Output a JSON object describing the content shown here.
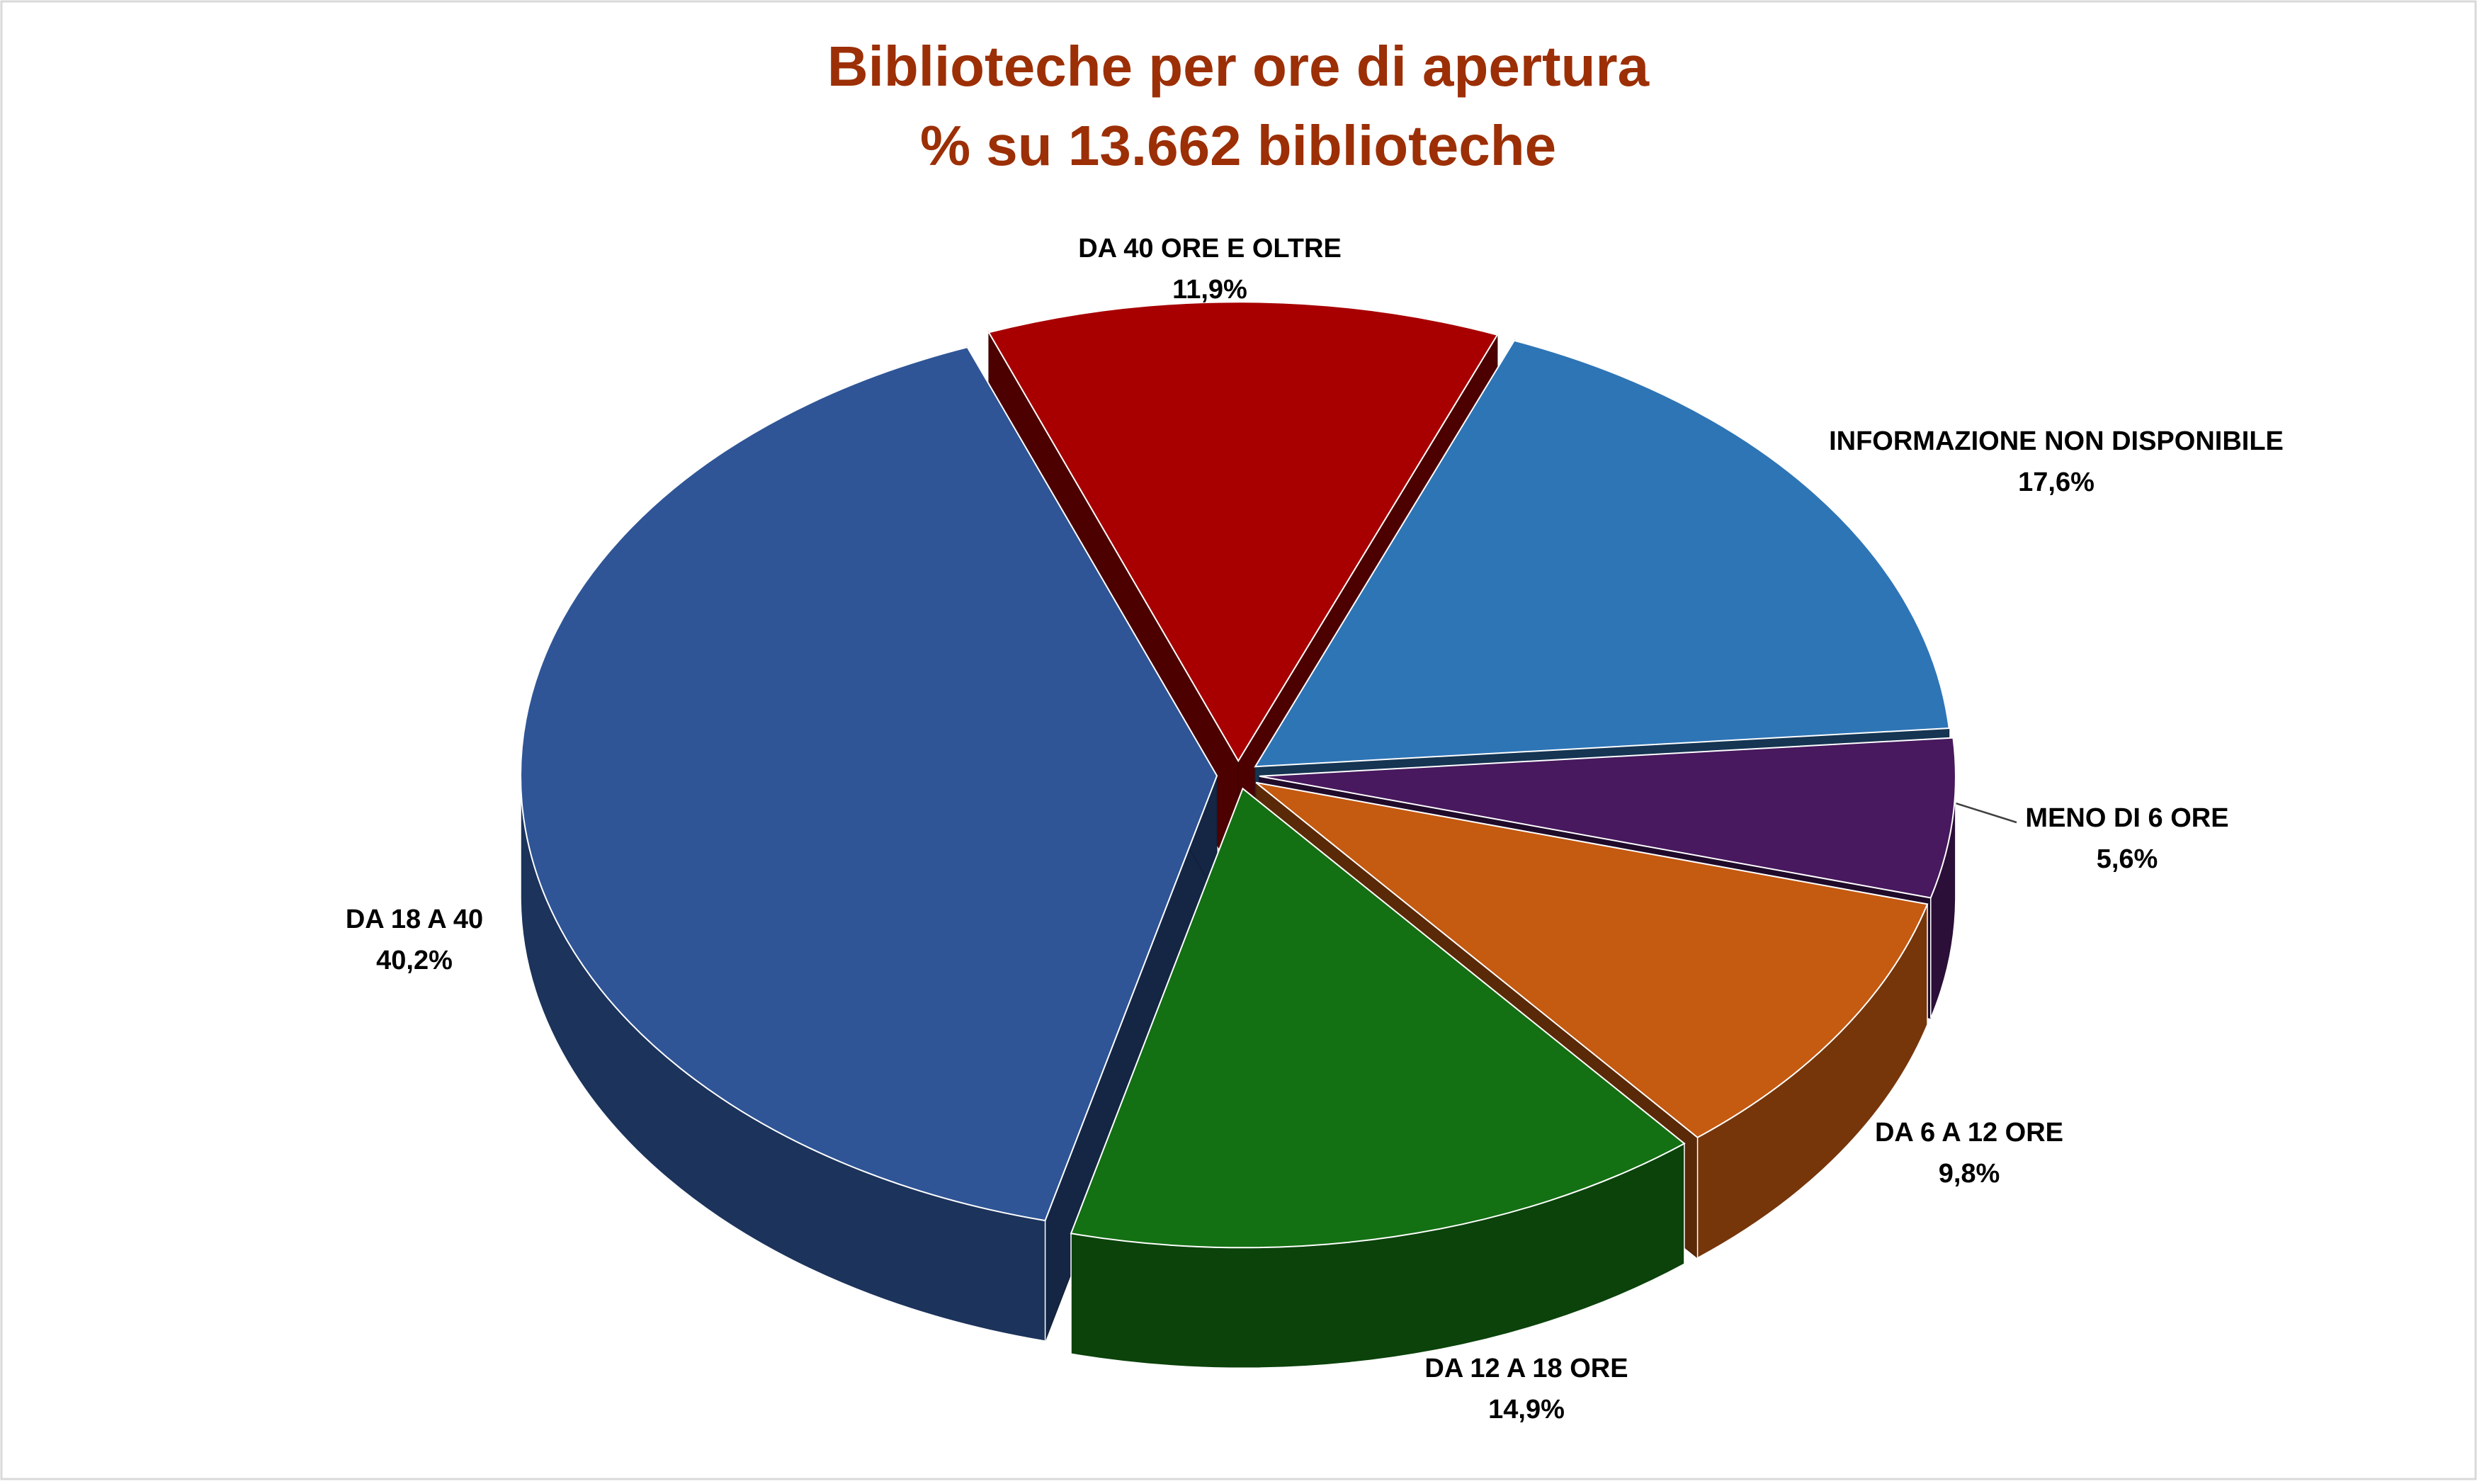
{
  "chart_data": {
    "type": "pie",
    "title": "Biblioteche per ore di apertura",
    "subtitle": "% su 13.662 biblioteche",
    "categories": [
      "DA 40 ORE E OLTRE",
      "INFORMAZIONE NON DISPONIBILE",
      "MENO DI 6 ORE",
      "DA 6 A 12 ORE",
      "DA 12 A 18 ORE",
      "DA 18 A 40"
    ],
    "values": [
      11.9,
      17.6,
      5.6,
      9.8,
      14.9,
      40.2
    ],
    "value_labels": [
      "11,9%",
      "17,6%",
      "5,6%",
      "9,8%",
      "14,9%",
      "40,2%"
    ],
    "colors": [
      "#a80000",
      "#2e75b6",
      "#48195e",
      "#c55a11",
      "#137013",
      "#2f5597"
    ]
  }
}
